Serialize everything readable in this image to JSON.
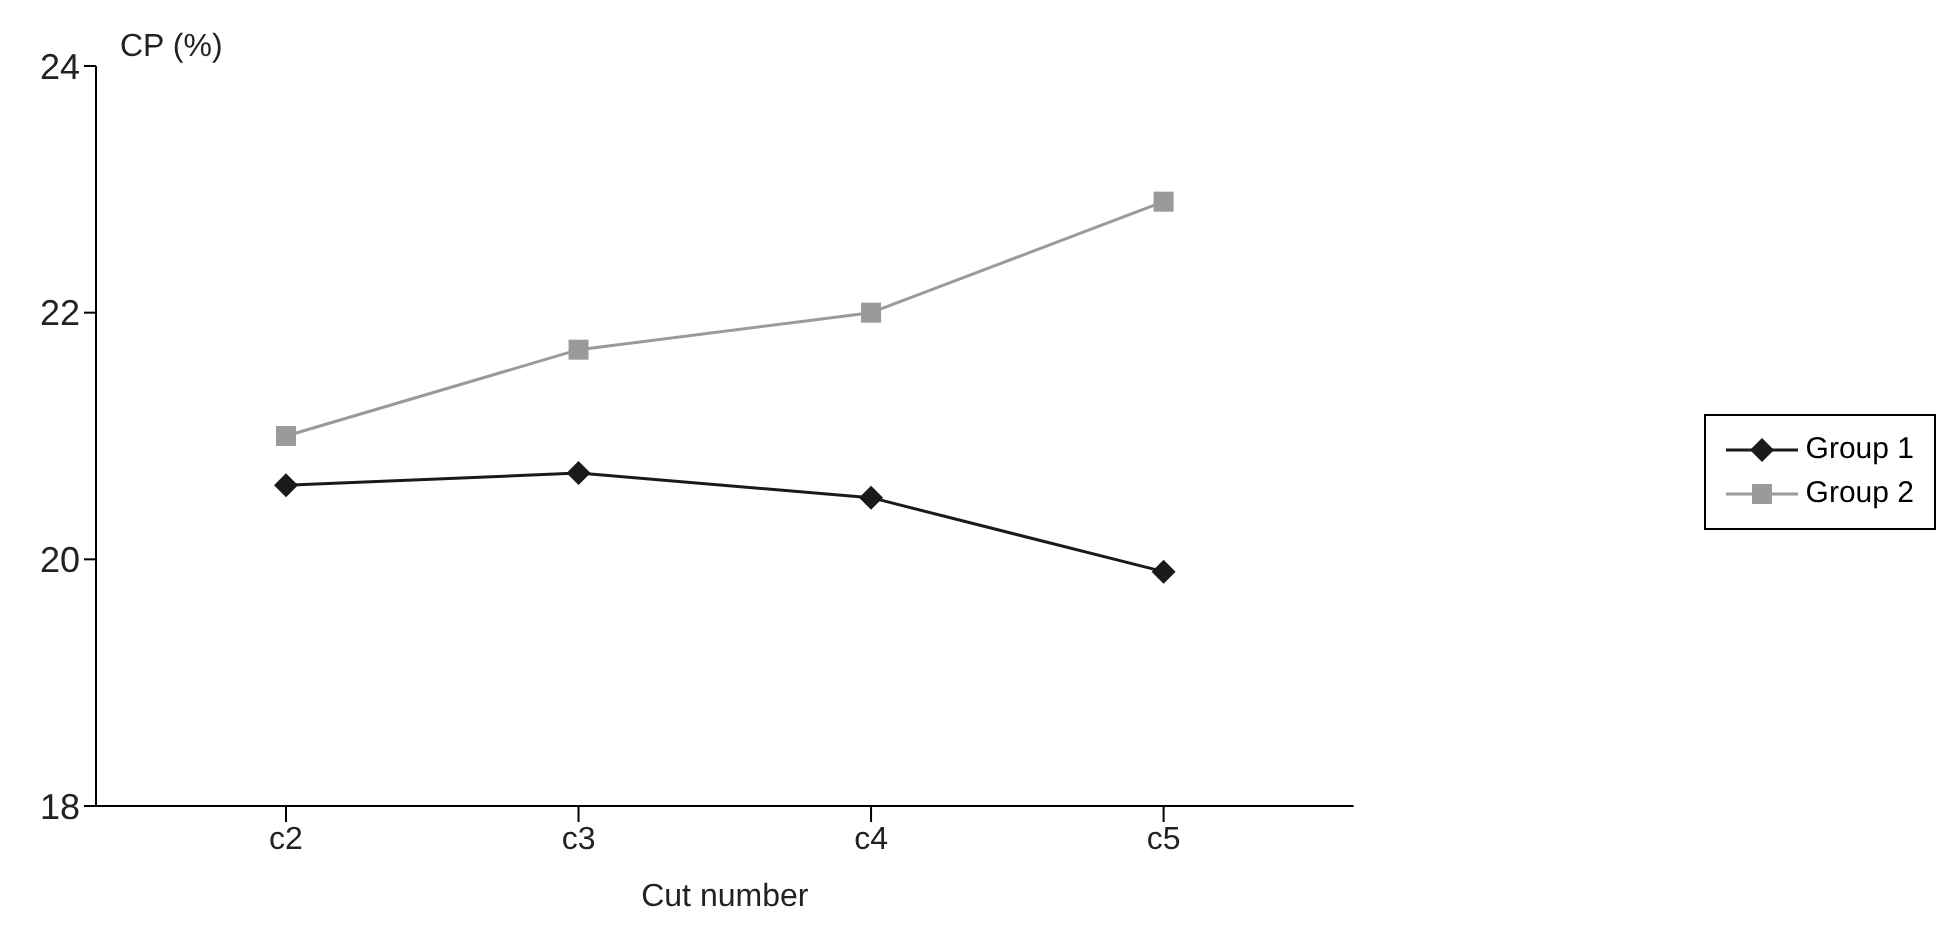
{
  "chart_data": {
    "type": "line",
    "xlabel": "Cut number",
    "ylabel": "CP (%)",
    "categories": [
      "c2",
      "c3",
      "c4",
      "c5"
    ],
    "series": [
      {
        "name": "Group 1",
        "color": "#1a1a1a",
        "marker": "diamond",
        "values": [
          20.6,
          20.7,
          20.5,
          19.9
        ]
      },
      {
        "name": "Group 2",
        "color": "#9a9a9a",
        "marker": "square",
        "values": [
          21.0,
          21.7,
          22.0,
          22.9
        ]
      }
    ],
    "ylim": [
      18,
      24
    ],
    "yticks": [
      18,
      20,
      22,
      24
    ],
    "grid": false,
    "legend": "right"
  }
}
